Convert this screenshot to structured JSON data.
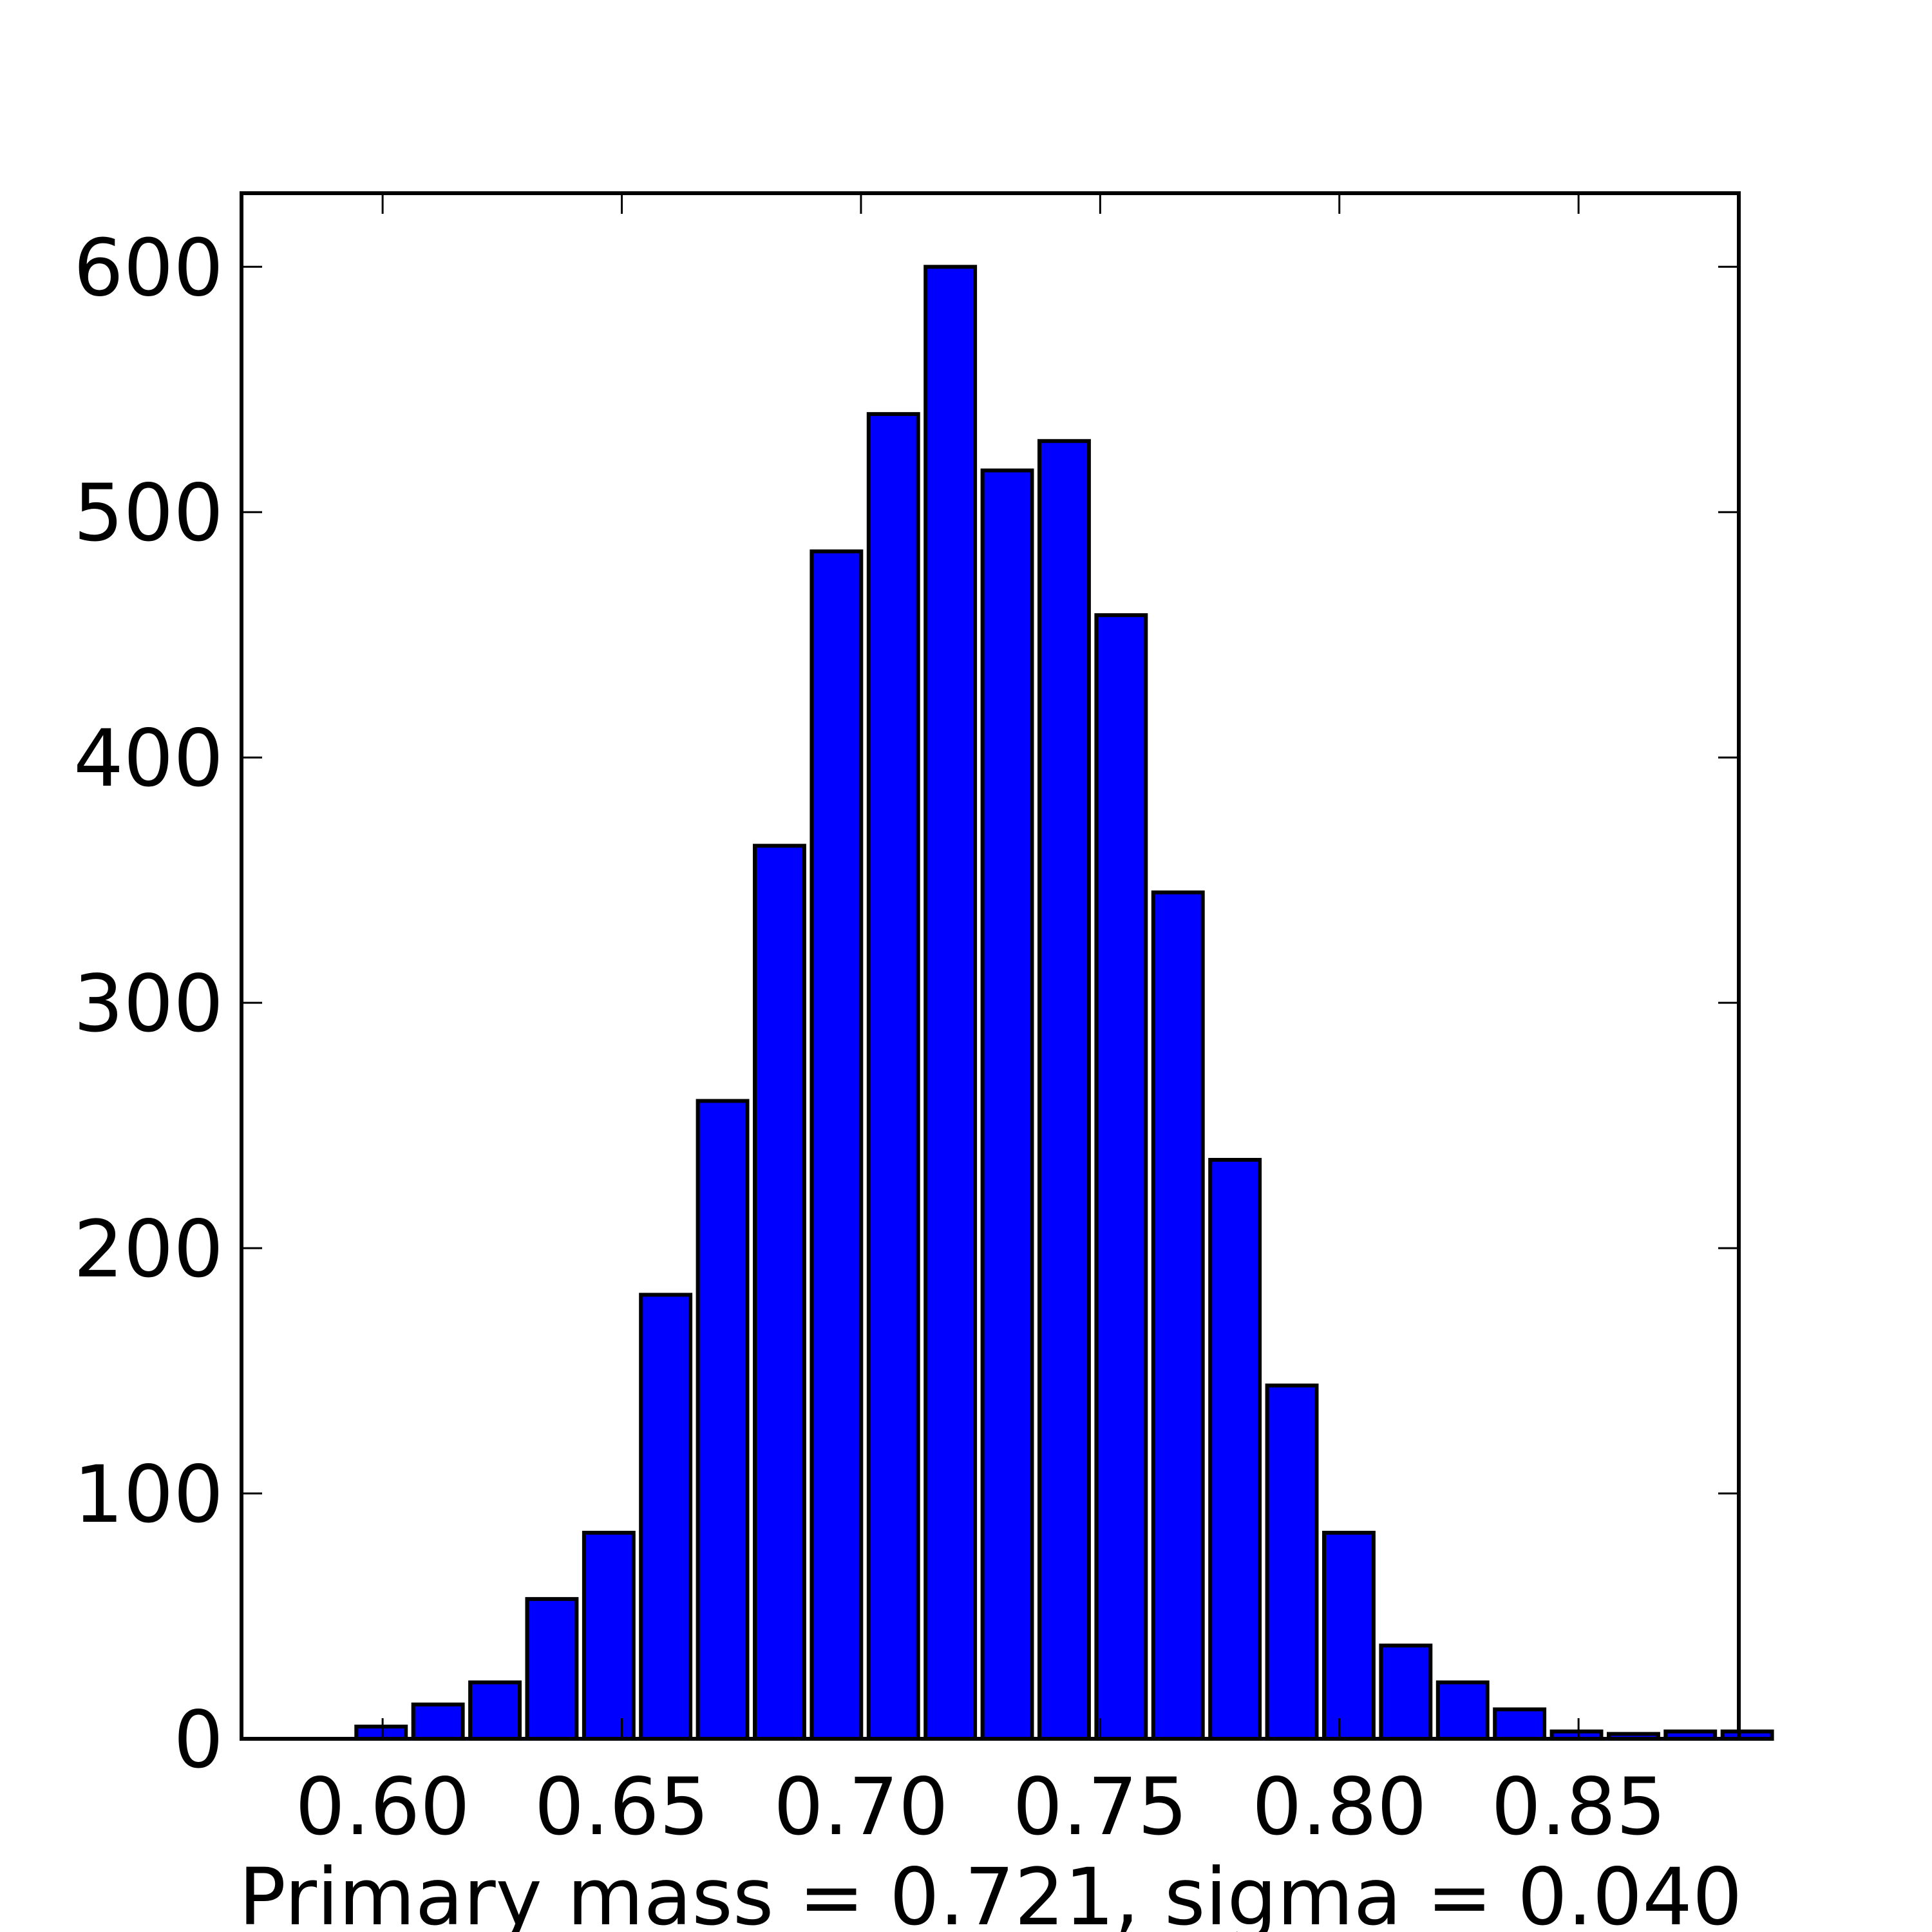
{
  "chart_data": {
    "type": "bar",
    "title": "",
    "xlabel": "Primary mass = 0.721, sigma = 0.040",
    "ylabel": "",
    "bin_start": 0.5945,
    "bin_width": 0.0119,
    "bar_fill": 0.87,
    "values": [
      5,
      14,
      23,
      57,
      84,
      181,
      260,
      364,
      484,
      540,
      600,
      517,
      529,
      458,
      345,
      236,
      144,
      84,
      38,
      23,
      12,
      3,
      2,
      3,
      3
    ],
    "xlim": [
      0.5705,
      0.8835
    ],
    "ylim": [
      0,
      630
    ],
    "xticks": [
      0.6,
      0.65,
      0.7,
      0.75,
      0.8,
      0.85
    ],
    "xtick_labels": [
      "0.60",
      "0.65",
      "0.70",
      "0.75",
      "0.80",
      "0.85"
    ],
    "yticks": [
      0,
      100,
      200,
      300,
      400,
      500,
      600
    ],
    "ytick_labels": [
      "0",
      "100",
      "200",
      "300",
      "400",
      "500",
      "600"
    ],
    "grid": false,
    "colors": {
      "bar": "#0000ff",
      "edge": "#000000"
    }
  }
}
